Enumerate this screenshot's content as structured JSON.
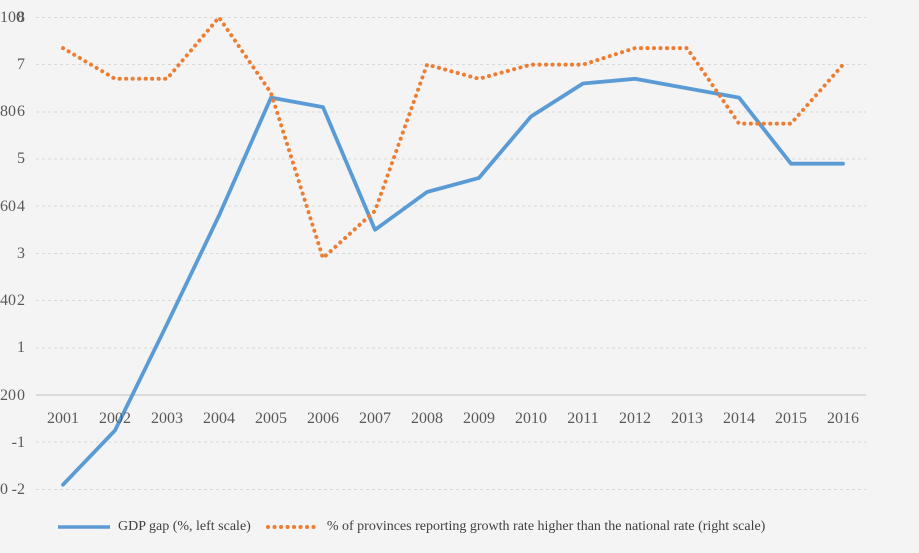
{
  "chart_data": {
    "type": "line",
    "title": "",
    "categories": [
      "2001",
      "2002",
      "2003",
      "2004",
      "2005",
      "2006",
      "2007",
      "2008",
      "2009",
      "2010",
      "2011",
      "2012",
      "2013",
      "2014",
      "2015",
      "2016"
    ],
    "series": [
      {
        "name": "GDP gap (%, left scale)",
        "axis": "left",
        "style": "solid",
        "color": "#5B9BD5",
        "values": [
          -1.9,
          -0.75,
          1.5,
          3.8,
          6.3,
          6.1,
          3.5,
          4.3,
          4.6,
          5.9,
          6.6,
          6.7,
          6.5,
          6.3,
          4.9,
          4.9
        ]
      },
      {
        "name": "% of provinces reporting growth rate higher than the national rate (right scale)",
        "axis": "right",
        "style": "dotted",
        "color": "#ED7D31",
        "values": [
          93.5,
          87,
          87,
          100,
          84,
          49,
          59,
          90,
          87,
          90,
          90,
          93.5,
          93.5,
          77.5,
          77.5,
          90
        ]
      }
    ],
    "left_axis": {
      "label": "",
      "min": -2,
      "max": 8,
      "ticks": [
        8,
        7,
        6,
        5,
        4,
        3,
        2,
        1,
        0,
        -1,
        -2
      ]
    },
    "right_axis": {
      "label": "",
      "min": 0,
      "max": 100,
      "ticks": [
        100,
        80,
        60,
        40,
        20,
        0
      ]
    },
    "grid": "horizontal-dashed",
    "legend_position": "bottom"
  },
  "colors": {
    "background": "#F4F4F5",
    "gridline": "#D9D9D9",
    "zero_line": "#BFBFBF",
    "tick_text": "#595959",
    "legend_text": "#404040"
  }
}
